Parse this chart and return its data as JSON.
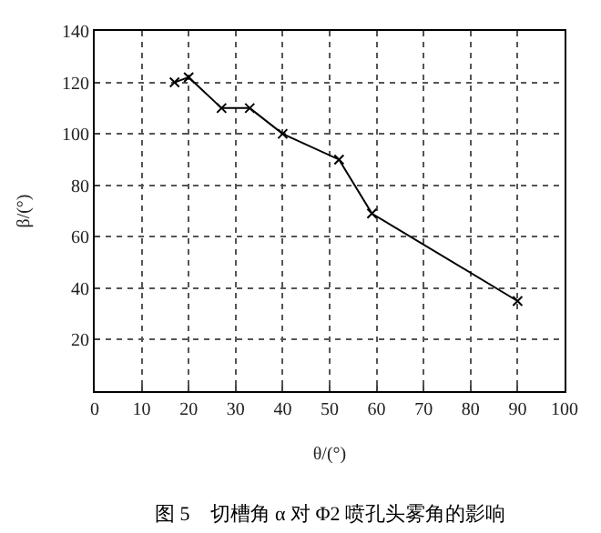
{
  "chart_data": {
    "type": "line",
    "xlabel": "θ/(°)",
    "ylabel": "β/(°)",
    "annotations": [
      "图 5　切槽角 α 对 Φ2 喷孔头雾角的影响"
    ],
    "x": [
      17,
      20,
      27,
      33,
      40,
      52,
      59,
      90
    ],
    "series": [
      {
        "color": "#000000",
        "values": [
          120,
          122,
          110,
          110,
          100,
          90,
          69,
          35
        ]
      }
    ],
    "xlim": [
      0,
      100
    ],
    "xticks": [
      0,
      10,
      20,
      30,
      40,
      50,
      60,
      70,
      80,
      90,
      100
    ],
    "ylim": [
      0,
      140
    ],
    "yticks": [
      20,
      40,
      60,
      80,
      100,
      120,
      140
    ],
    "grid": true,
    "marker": "cross",
    "line_style": "solid"
  }
}
